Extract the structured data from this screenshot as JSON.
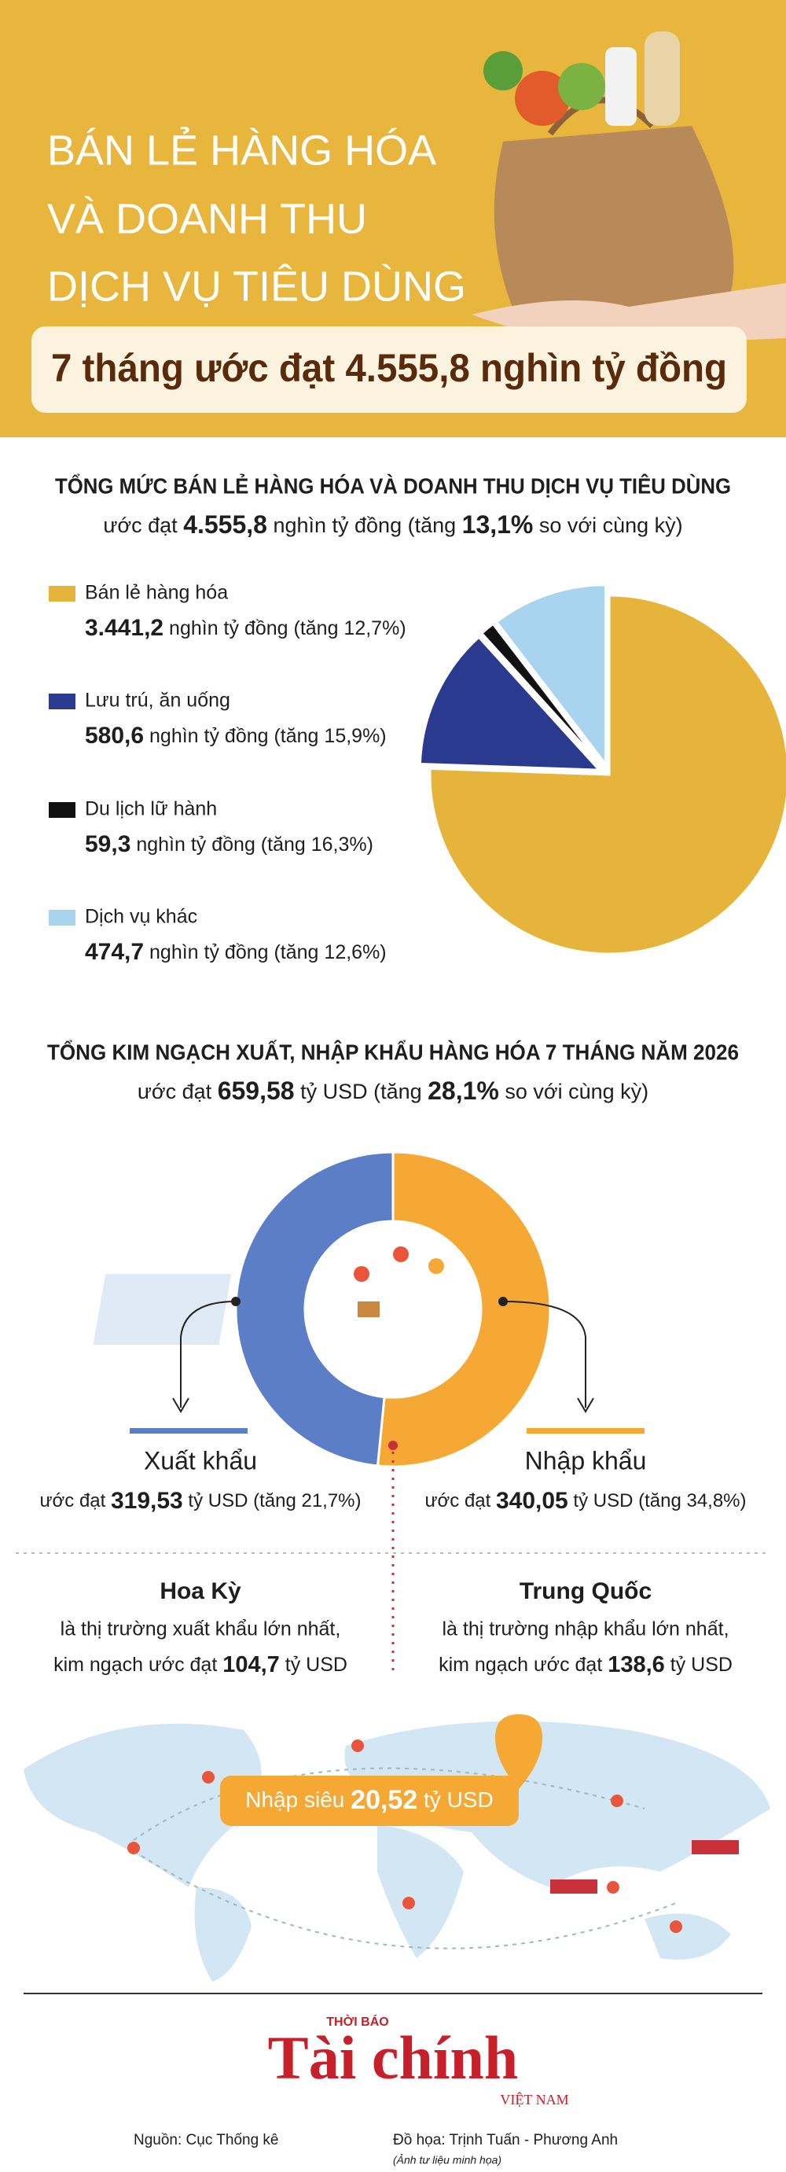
{
  "header": {
    "title_lines": [
      "BÁN LẺ HÀNG HÓA",
      "VÀ DOANH THU",
      "DỊCH VỤ TIÊU DÙNG"
    ],
    "subtitle": "7 tháng ước đạt 4.555,8 nghìn tỷ đồng"
  },
  "chart_data": [
    {
      "type": "pie",
      "title": "TỔNG MỨC BÁN LẺ HÀNG HÓA VÀ DOANH THU DỊCH VỤ TIÊU DÙNG",
      "summary": [
        "ước đạt ",
        "4.555,8",
        " nghìn tỷ đồng (tăng ",
        "13,1%",
        " so với cùng kỳ)"
      ],
      "categories": [
        "Bán lẻ hàng hóa",
        "Lưu trú, ăn uống",
        "Du lịch lữ hành",
        "Dịch vụ khác"
      ],
      "values": [
        3441.2,
        580.6,
        59.3,
        474.7
      ],
      "value_labels": [
        "3.441,2",
        "580,6",
        "59,3",
        "474,7"
      ],
      "value_suffixes": [
        " nghìn tỷ đồng (tăng 12,7%)",
        " nghìn tỷ đồng (tăng 15,9%)",
        " nghìn tỷ đồng (tăng 16,3%)",
        " nghìn tỷ đồng (tăng 12,6%)"
      ],
      "colors": [
        "#e6b43a",
        "#2a3b8f",
        "#111111",
        "#a9d4f0"
      ]
    },
    {
      "type": "donut",
      "title": "TỔNG KIM NGẠCH XUẤT, NHẬP KHẨU HÀNG HÓA 7 THÁNG NĂM 2026",
      "summary": [
        "ước đạt ",
        "659,58",
        " tỷ USD (tăng ",
        "28,1%",
        " so với cùng kỳ)"
      ],
      "categories": [
        "Xuất khẩu",
        "Nhập khẩu"
      ],
      "values": [
        319.53,
        340.05
      ],
      "value_labels": [
        "319,53",
        "340,05"
      ],
      "value_prefix": "ước đạt ",
      "value_suffixes": [
        " tỷ USD (tăng 21,7%)",
        " tỷ USD (tăng 34,8%)"
      ],
      "colors": [
        "#5b7ec6",
        "#f6a834"
      ]
    }
  ],
  "markets": [
    {
      "country": "Hoa Kỳ",
      "line": "là thị trường xuất khẩu lớn nhất,",
      "value_prefix": "kim ngạch ước đạt ",
      "value": "104,7",
      "value_suffix": " tỷ USD"
    },
    {
      "country": "Trung Quốc",
      "line": "là thị trường nhập khẩu lớn nhất,",
      "value_prefix": "kim ngạch ước đạt ",
      "value": "138,6",
      "value_suffix": " tỷ USD"
    }
  ],
  "trade_balance": [
    "Nhập siêu ",
    "20,52",
    " tỷ USD"
  ],
  "footer": {
    "logo_top": "THỜI BÁO",
    "logo": "Tài chính",
    "logo_bottom": "VIỆT NAM",
    "source": "Nguồn: Cục Thống kê",
    "graphics": "Đồ họa: Trịnh Tuấn - Phương Anh",
    "photo_note": "(Ảnh tư liệu minh họa)"
  }
}
